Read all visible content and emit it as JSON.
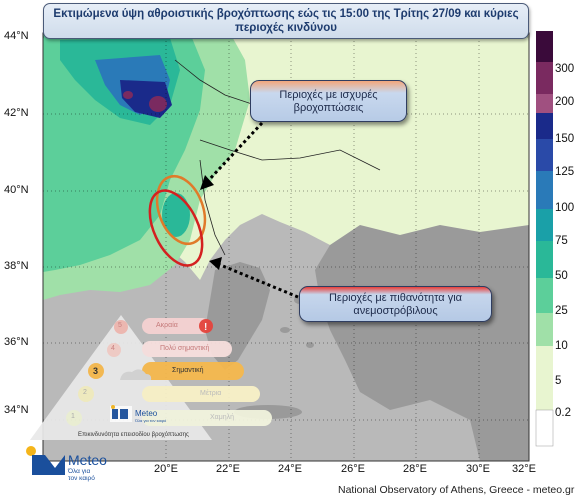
{
  "title": {
    "line1": "Εκτιμώμενα ύψη αθροιστικής βροχόπτωσης εώς τις 15:00 της Τρίτης 27/09 και κύριες",
    "line2": "περιοχές κινδύνου"
  },
  "callouts": {
    "heavy_rain": {
      "line1": "Περιοχές με ισχυρές",
      "line2": "βροχοπτώσεις"
    },
    "tornado": {
      "line1": "Περιοχές με πιθανότητα για",
      "line2": "ανεμοστρόβιλους"
    }
  },
  "colorbar": {
    "labels": [
      "300",
      "200",
      "150",
      "125",
      "100",
      "75",
      "50",
      "25",
      "10",
      "5",
      "0.2"
    ],
    "colors": [
      "#3a0a3a",
      "#7a2a60",
      "#a05080",
      "#1a2a8a",
      "#2a4aa8",
      "#2a7ab8",
      "#1aa0a8",
      "#2ab898",
      "#5ccf9a",
      "#a0e0a8",
      "#e8f5d0",
      "#ffffff"
    ]
  },
  "lat_labels": [
    "44°N",
    "42°N",
    "40°N",
    "38°N",
    "36°N",
    "34°N"
  ],
  "lon_labels": [
    "20°E",
    "22°E",
    "24°E",
    "26°E",
    "28°E",
    "30°E",
    "32°E"
  ],
  "pyramid": {
    "levels": [
      {
        "num": "5",
        "label": "Ακραία"
      },
      {
        "num": "4",
        "label": "Πολύ σημαντική"
      },
      {
        "num": "3",
        "label": "Σημαντική"
      },
      {
        "num": "2",
        "label": "Μέτρια"
      },
      {
        "num": "1",
        "label": "Χαμηλή"
      }
    ],
    "caption": "Επικινδυνότητα επεισοδίου βροχόπτωσης",
    "logo": "Meteo",
    "logo_sub": "Όλα για τον καιρό"
  },
  "logo": {
    "name": "Meteo",
    "sub1": "Όλα για",
    "sub2": "τον καιρό"
  },
  "credit": "National Observatory of Athens, Greece - meteo.gr"
}
